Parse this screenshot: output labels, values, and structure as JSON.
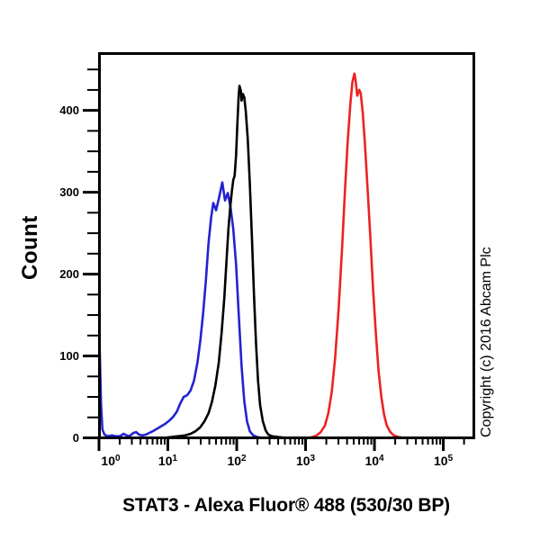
{
  "copyright": "Copyright (c) 2016 Abcam Plc",
  "chart_data": {
    "type": "line",
    "subtype": "flow-cytometry-histogram",
    "xlabel": "STAT3 - Alexa Fluor® 488 (530/30 BP)",
    "ylabel": "Count",
    "x_scale": "log10",
    "x_tick_base": "10",
    "x_tick_exponents": [
      0,
      1,
      2,
      3,
      4,
      5
    ],
    "xlim_log10": [
      0,
      5.45
    ],
    "y_ticks": [
      0,
      100,
      200,
      300,
      400
    ],
    "y_minor_step": 25,
    "ylim": [
      0,
      470
    ],
    "grid": false,
    "legend": false,
    "axis_color": "#000000",
    "background_color": "#ffffff",
    "series": [
      {
        "name": "blue-histogram",
        "color": "#2323d2",
        "points": [
          [
            0,
            143
          ],
          [
            0.03,
            40
          ],
          [
            0.05,
            10
          ],
          [
            0.08,
            4
          ],
          [
            0.13,
            2
          ],
          [
            0.19,
            3
          ],
          [
            0.24,
            2
          ],
          [
            0.3,
            2
          ],
          [
            0.36,
            5
          ],
          [
            0.4,
            3
          ],
          [
            0.44,
            2
          ],
          [
            0.5,
            6
          ],
          [
            0.54,
            7
          ],
          [
            0.58,
            4
          ],
          [
            0.63,
            3
          ],
          [
            0.68,
            4
          ],
          [
            0.73,
            6
          ],
          [
            0.78,
            8
          ],
          [
            0.84,
            11
          ],
          [
            0.9,
            14
          ],
          [
            0.96,
            17
          ],
          [
            1.02,
            21
          ],
          [
            1.08,
            26
          ],
          [
            1.13,
            32
          ],
          [
            1.18,
            42
          ],
          [
            1.23,
            50
          ],
          [
            1.28,
            52
          ],
          [
            1.33,
            58
          ],
          [
            1.38,
            70
          ],
          [
            1.43,
            92
          ],
          [
            1.47,
            118
          ],
          [
            1.51,
            150
          ],
          [
            1.55,
            190
          ],
          [
            1.59,
            238
          ],
          [
            1.63,
            270
          ],
          [
            1.66,
            287
          ],
          [
            1.7,
            278
          ],
          [
            1.74,
            292
          ],
          [
            1.79,
            312
          ],
          [
            1.83,
            290
          ],
          [
            1.87,
            299
          ],
          [
            1.91,
            282
          ],
          [
            1.95,
            255
          ],
          [
            1.99,
            212
          ],
          [
            2.03,
            150
          ],
          [
            2.07,
            88
          ],
          [
            2.11,
            45
          ],
          [
            2.15,
            20
          ],
          [
            2.19,
            8
          ],
          [
            2.24,
            3
          ],
          [
            2.3,
            1
          ],
          [
            2.37,
            0
          ],
          [
            5.45,
            0
          ]
        ]
      },
      {
        "name": "black-histogram",
        "color": "#000000",
        "points": [
          [
            0,
            0
          ],
          [
            0.95,
            0
          ],
          [
            1.05,
            1
          ],
          [
            1.15,
            2
          ],
          [
            1.25,
            3
          ],
          [
            1.33,
            5
          ],
          [
            1.4,
            8
          ],
          [
            1.47,
            13
          ],
          [
            1.53,
            20
          ],
          [
            1.59,
            30
          ],
          [
            1.64,
            44
          ],
          [
            1.69,
            64
          ],
          [
            1.74,
            92
          ],
          [
            1.78,
            128
          ],
          [
            1.82,
            172
          ],
          [
            1.85,
            215
          ],
          [
            1.88,
            255
          ],
          [
            1.91,
            285
          ],
          [
            1.93,
            302
          ],
          [
            1.95,
            315
          ],
          [
            1.97,
            320
          ],
          [
            1.99,
            345
          ],
          [
            2.01,
            385
          ],
          [
            2.03,
            420
          ],
          [
            2.04,
            430
          ],
          [
            2.06,
            424
          ],
          [
            2.07,
            412
          ],
          [
            2.09,
            420
          ],
          [
            2.11,
            416
          ],
          [
            2.13,
            400
          ],
          [
            2.16,
            365
          ],
          [
            2.19,
            310
          ],
          [
            2.22,
            245
          ],
          [
            2.25,
            175
          ],
          [
            2.28,
            115
          ],
          [
            2.31,
            70
          ],
          [
            2.34,
            40
          ],
          [
            2.38,
            20
          ],
          [
            2.42,
            9
          ],
          [
            2.46,
            4
          ],
          [
            2.51,
            2
          ],
          [
            2.6,
            1
          ],
          [
            2.72,
            0
          ],
          [
            5.45,
            0
          ]
        ]
      },
      {
        "name": "red-histogram",
        "color": "#ee2222",
        "points": [
          [
            0,
            0
          ],
          [
            3.02,
            0
          ],
          [
            3.1,
            1
          ],
          [
            3.16,
            3
          ],
          [
            3.22,
            7
          ],
          [
            3.28,
            15
          ],
          [
            3.33,
            30
          ],
          [
            3.38,
            56
          ],
          [
            3.43,
            98
          ],
          [
            3.48,
            158
          ],
          [
            3.53,
            232
          ],
          [
            3.57,
            300
          ],
          [
            3.61,
            360
          ],
          [
            3.65,
            408
          ],
          [
            3.68,
            435
          ],
          [
            3.71,
            445
          ],
          [
            3.73,
            434
          ],
          [
            3.75,
            418
          ],
          [
            3.78,
            425
          ],
          [
            3.8,
            421
          ],
          [
            3.83,
            398
          ],
          [
            3.86,
            362
          ],
          [
            3.9,
            305
          ],
          [
            3.94,
            245
          ],
          [
            3.98,
            182
          ],
          [
            4.02,
            128
          ],
          [
            4.06,
            82
          ],
          [
            4.1,
            50
          ],
          [
            4.14,
            28
          ],
          [
            4.18,
            15
          ],
          [
            4.23,
            7
          ],
          [
            4.28,
            3
          ],
          [
            4.35,
            1
          ],
          [
            4.43,
            0
          ],
          [
            5.45,
            0
          ]
        ]
      }
    ]
  }
}
